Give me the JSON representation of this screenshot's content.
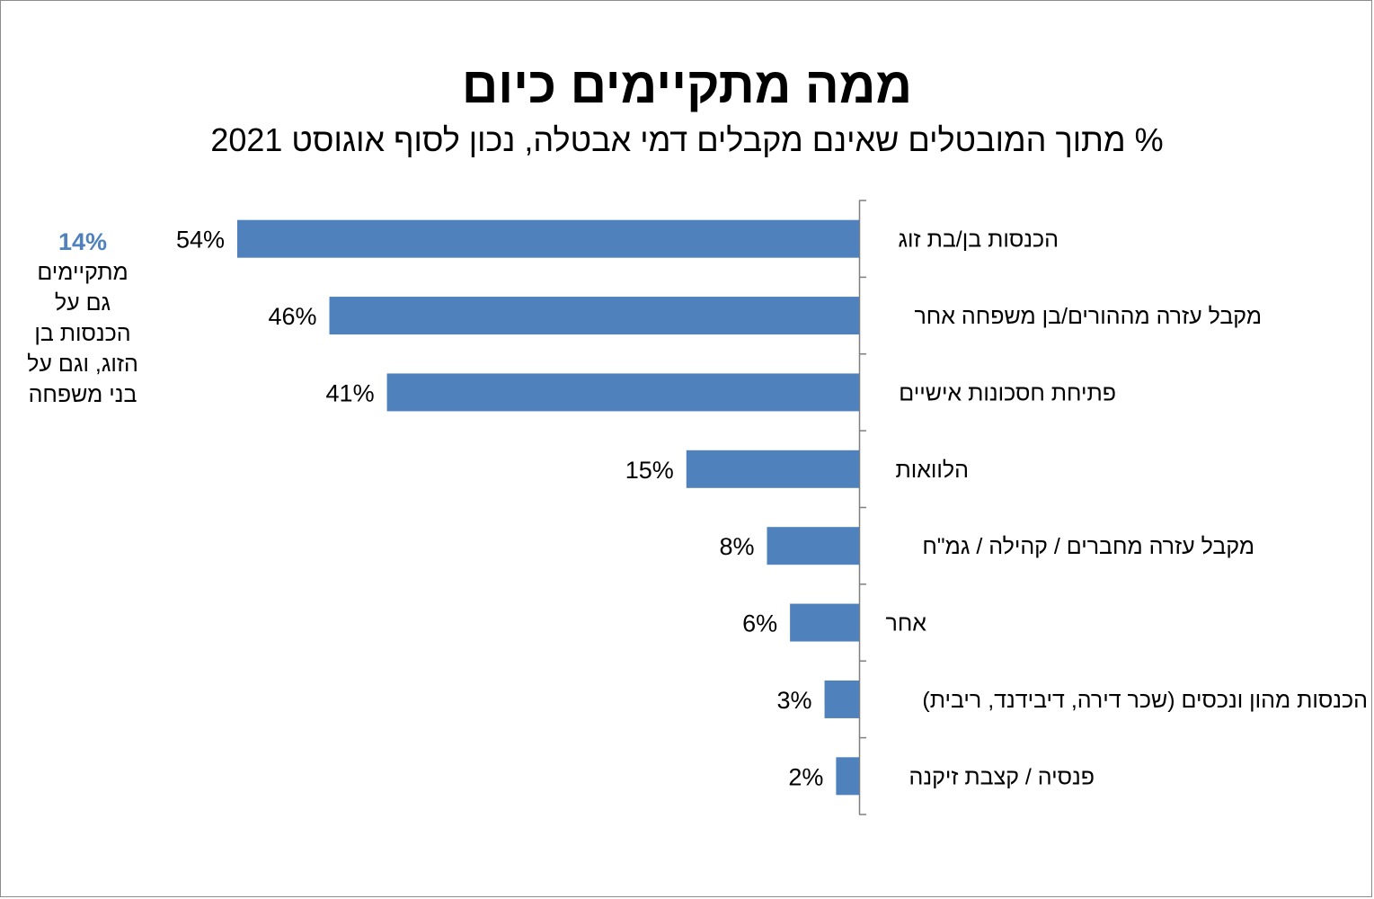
{
  "title": "ממה מתקיימים כיום",
  "subtitle": "% מתוך המובטלים שאינם מקבלים דמי אבטלה, נכון לסוף אוגוסט 2021",
  "side_note": {
    "value": "14%",
    "lines": [
      "מתקיימים",
      "גם על",
      "הכנסות בן",
      "הזוג, וגם על",
      "בני משפחה"
    ]
  },
  "colors": {
    "bar": "#4f81bd",
    "side_value": "#4f81bd",
    "axis": "#7f7f7f"
  },
  "chart_data": {
    "type": "bar",
    "orientation": "horizontal",
    "direction": "right-to-left",
    "categories": [
      "הכנסות בן/בת זוג",
      "מקבל עזרה מההורים/בן משפחה אחר",
      "פתיחת חסכונות אישיים",
      "הלוואות",
      "מקבל עזרה מחברים /  קהילה / גמ\"ח",
      "אחר",
      "הכנסות מהון ונכסים (שכר דירה, דיבידנד, ריבית)",
      "פנסיה / קצבת זיקנה"
    ],
    "values": [
      54,
      46,
      41,
      15,
      8,
      6,
      3,
      2
    ],
    "value_labels": [
      "54%",
      "46%",
      "41%",
      "15%",
      "8%",
      "6%",
      "3%",
      "2%"
    ],
    "unit": "%",
    "xlim": [
      0,
      54
    ],
    "grid": false,
    "legend": "none"
  }
}
